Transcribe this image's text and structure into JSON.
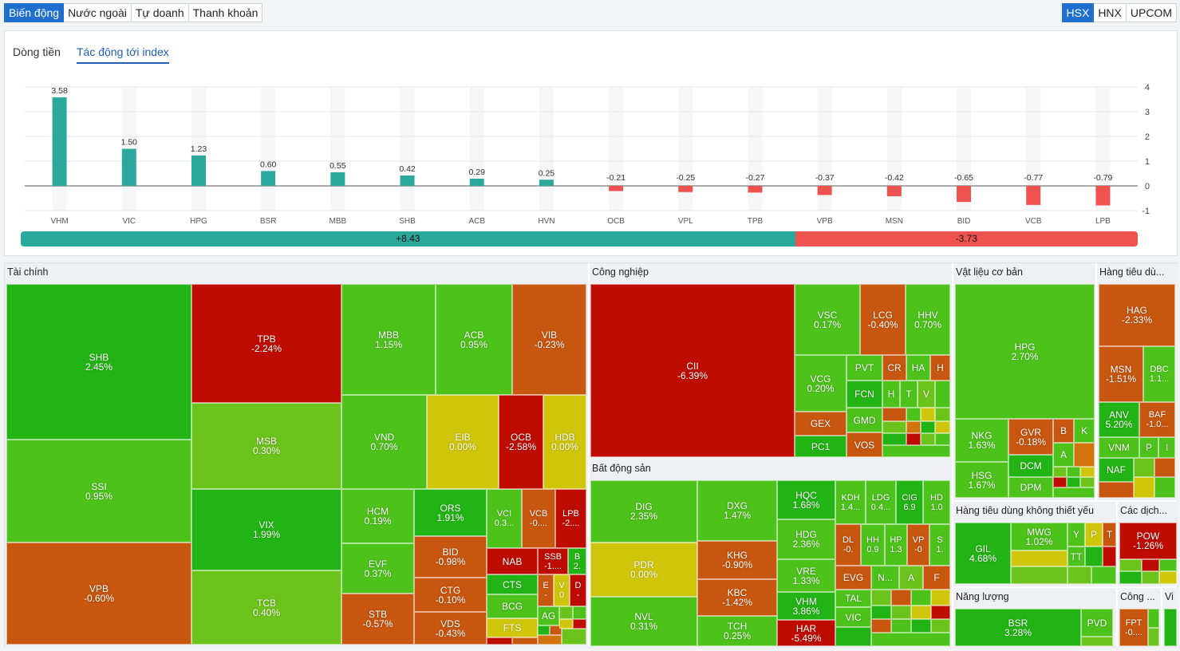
{
  "top_tabs": [
    {
      "label": "Biến động",
      "active": true
    },
    {
      "label": "Nước ngoài",
      "active": false
    },
    {
      "label": "Tự doanh",
      "active": false
    },
    {
      "label": "Thanh khoản",
      "active": false
    }
  ],
  "exchange_tabs": [
    {
      "label": "HSX",
      "active": true
    },
    {
      "label": "HNX",
      "active": false
    },
    {
      "label": "UPCOM",
      "active": false
    }
  ],
  "chart_tabs": {
    "flow": "Dòng tiền",
    "impact": "Tác động tới index"
  },
  "summary": {
    "positive": "+8.43",
    "negative": "-3.73",
    "positive_value": 8.43,
    "negative_value": 3.73
  },
  "colors": {
    "positive_bar": "#2aa89c",
    "negative_bar": "#ef5350",
    "up_strong": "#22b414",
    "up": "#4cc21a",
    "up_light": "#6cc31b",
    "flat": "#cfc60b",
    "down_light": "#d0740b",
    "down": "#c7560f",
    "down_strong": "#be0c02"
  },
  "chart_data": {
    "type": "bar",
    "categories": [
      "VHM",
      "VIC",
      "HPG",
      "BSR",
      "MBB",
      "SHB",
      "ACB",
      "HVN",
      "OCB",
      "VPL",
      "TPB",
      "VPB",
      "MSN",
      "BID",
      "VCB",
      "LPB"
    ],
    "values": [
      3.58,
      1.5,
      1.23,
      0.6,
      0.55,
      0.42,
      0.29,
      0.25,
      -0.21,
      -0.25,
      -0.27,
      -0.37,
      -0.42,
      -0.65,
      -0.77,
      -0.79
    ],
    "value_labels": [
      "3.58",
      "1.50",
      "1.23",
      "0.60",
      "0.55",
      "0.42",
      "0.29",
      "0.25",
      "-0.21",
      "-0.25",
      "-0.27",
      "-0.37",
      "-0.42",
      "-0.65",
      "-0.77",
      "-0.79"
    ],
    "ylim": [
      -1,
      4
    ],
    "yticks": [
      "4",
      "3",
      "2",
      "1",
      "0",
      "-1"
    ],
    "ytick_values": [
      4,
      3,
      2,
      1,
      0,
      -1
    ],
    "grid": true
  },
  "sectors": {
    "tai_chinh": "Tài chính",
    "cong_nghiep": "Công nghiệp",
    "bat_dong_san": "Bất động sản",
    "vat_lieu": "Vật liệu cơ bản",
    "hang_tieu_dung": "Hàng tiêu dù...",
    "hang_khong_thiet_yeu": "Hàng tiêu dùng không thiết yếu",
    "cac_dich": "Các dịch...",
    "nang_luong": "Năng lượng",
    "cong": "Công ...",
    "vi": "Vi"
  },
  "tiles": {
    "SHB": {
      "sym": "SHB",
      "chg": "2.45%"
    },
    "SSI": {
      "sym": "SSI",
      "chg": "0.95%"
    },
    "VPB": {
      "sym": "VPB",
      "chg": "-0.60%"
    },
    "TPB": {
      "sym": "TPB",
      "chg": "-2.24%"
    },
    "MSB": {
      "sym": "MSB",
      "chg": "0.30%"
    },
    "VIX": {
      "sym": "VIX",
      "chg": "1.99%"
    },
    "TCB": {
      "sym": "TCB",
      "chg": "0.40%"
    },
    "MBB": {
      "sym": "MBB",
      "chg": "1.15%"
    },
    "ACB": {
      "sym": "ACB",
      "chg": "0.95%"
    },
    "VIB": {
      "sym": "VIB",
      "chg": "-0.23%"
    },
    "VND": {
      "sym": "VND",
      "chg": "0.70%"
    },
    "EIB": {
      "sym": "EIB",
      "chg": "0.00%"
    },
    "OCB": {
      "sym": "OCB",
      "chg": "-2.58%"
    },
    "HDB": {
      "sym": "HDB",
      "chg": "0.00%"
    },
    "HCM": {
      "sym": "HCM",
      "chg": "0.19%"
    },
    "ORS": {
      "sym": "ORS",
      "chg": "1.91%"
    },
    "VCI": {
      "sym": "VCI",
      "chg": "0.3..."
    },
    "VCB": {
      "sym": "VCB",
      "chg": "-0...."
    },
    "LPB": {
      "sym": "LPB",
      "chg": "-2...."
    },
    "EVF": {
      "sym": "EVF",
      "chg": "0.37%"
    },
    "BID": {
      "sym": "BID",
      "chg": "-0.98%"
    },
    "NAB": {
      "sym": "NAB",
      "chg": ""
    },
    "SSB": {
      "sym": "SSB",
      "chg": "-1...."
    },
    "B2": {
      "sym": "B",
      "chg": "2."
    },
    "CTG": {
      "sym": "CTG",
      "chg": "-0.10%"
    },
    "CTS": {
      "sym": "CTS",
      "chg": ""
    },
    "STB": {
      "sym": "STB",
      "chg": "-0.57%"
    },
    "BCG": {
      "sym": "BCG",
      "chg": ""
    },
    "E": {
      "sym": "E",
      "chg": "-"
    },
    "V0": {
      "sym": "V",
      "chg": "0"
    },
    "D": {
      "sym": "D",
      "chg": "-"
    },
    "VDS": {
      "sym": "VDS",
      "chg": "-0.43%"
    },
    "FTS": {
      "sym": "FTS",
      "chg": ""
    },
    "AG": {
      "sym": "AG",
      "chg": ""
    },
    "CII": {
      "sym": "CII",
      "chg": "-6.39%"
    },
    "VSC": {
      "sym": "VSC",
      "chg": "0.17%"
    },
    "LCG": {
      "sym": "LCG",
      "chg": "-0.40%"
    },
    "HHV": {
      "sym": "HHV",
      "chg": "0.70%"
    },
    "VCG": {
      "sym": "VCG",
      "chg": "0.20%"
    },
    "PVT": {
      "sym": "PVT",
      "chg": ""
    },
    "CR": {
      "sym": "CR",
      "chg": ""
    },
    "HA": {
      "sym": "HA",
      "chg": ""
    },
    "H1": {
      "sym": "H",
      "chg": ""
    },
    "FCN": {
      "sym": "FCN",
      "chg": ""
    },
    "H2": {
      "sym": "H",
      "chg": ""
    },
    "T": {
      "sym": "T",
      "chg": ""
    },
    "V": {
      "sym": "V",
      "chg": ""
    },
    "GEX": {
      "sym": "GEX",
      "chg": ""
    },
    "GMD": {
      "sym": "GMD",
      "chg": ""
    },
    "PC1": {
      "sym": "PC1",
      "chg": ""
    },
    "VOS": {
      "sym": "VOS",
      "chg": ""
    },
    "DIG": {
      "sym": "DIG",
      "chg": "2.35%"
    },
    "DXG": {
      "sym": "DXG",
      "chg": "1.47%"
    },
    "HQC": {
      "sym": "HQC",
      "chg": "1.68%"
    },
    "KDH": {
      "sym": "KDH",
      "chg": "1.4..."
    },
    "LDG": {
      "sym": "LDG",
      "chg": "0.4..."
    },
    "CIG": {
      "sym": "CIG",
      "chg": "6.9"
    },
    "HD": {
      "sym": "HD",
      "chg": "1.0"
    },
    "HDG": {
      "sym": "HDG",
      "chg": "2.36%"
    },
    "PDR": {
      "sym": "PDR",
      "chg": "0.00%"
    },
    "KHG": {
      "sym": "KHG",
      "chg": "-0.90%"
    },
    "DL": {
      "sym": "DL",
      "chg": "-0."
    },
    "HH": {
      "sym": "HH",
      "chg": "0.9"
    },
    "HP": {
      "sym": "HP",
      "chg": "1.3"
    },
    "VP": {
      "sym": "VP",
      "chg": "-0"
    },
    "S": {
      "sym": "S",
      "chg": "1."
    },
    "VRE": {
      "sym": "VRE",
      "chg": "1.33%"
    },
    "EVG": {
      "sym": "EVG",
      "chg": ""
    },
    "N": {
      "sym": "N...",
      "chg": ""
    },
    "A": {
      "sym": "A",
      "chg": ""
    },
    "F": {
      "sym": "F",
      "chg": ""
    },
    "NVL": {
      "sym": "NVL",
      "chg": "0.31%"
    },
    "KBC": {
      "sym": "KBC",
      "chg": "-1.42%"
    },
    "VHM": {
      "sym": "VHM",
      "chg": "3.86%"
    },
    "TAL": {
      "sym": "TAL",
      "chg": ""
    },
    "VIC": {
      "sym": "VIC",
      "chg": ""
    },
    "TCH": {
      "sym": "TCH",
      "chg": "0.25%"
    },
    "HAR": {
      "sym": "HAR",
      "chg": "-5.49%"
    },
    "HPG": {
      "sym": "HPG",
      "chg": "2.70%"
    },
    "NKG": {
      "sym": "NKG",
      "chg": "1.63%"
    },
    "GVR": {
      "sym": "GVR",
      "chg": "-0.18%"
    },
    "BV": {
      "sym": "B",
      "chg": ""
    },
    "K": {
      "sym": "K",
      "chg": ""
    },
    "AV": {
      "sym": "A",
      "chg": ""
    },
    "DCM": {
      "sym": "DCM",
      "chg": ""
    },
    "HSG": {
      "sym": "HSG",
      "chg": "1.67%"
    },
    "DPM": {
      "sym": "DPM",
      "chg": ""
    },
    "HAG": {
      "sym": "HAG",
      "chg": "-2.33%"
    },
    "MSN": {
      "sym": "MSN",
      "chg": "-1.51%"
    },
    "DBC": {
      "sym": "DBC",
      "chg": "1.1..."
    },
    "ANV": {
      "sym": "ANV",
      "chg": "5.20%"
    },
    "BAF": {
      "sym": "BAF",
      "chg": "-1.0..."
    },
    "VNM": {
      "sym": "VNM",
      "chg": ""
    },
    "P": {
      "sym": "P",
      "chg": ""
    },
    "I": {
      "sym": "I",
      "chg": ""
    },
    "NAF": {
      "sym": "NAF",
      "chg": ""
    },
    "GIL": {
      "sym": "GIL",
      "chg": "4.68%"
    },
    "MWG": {
      "sym": "MWG",
      "chg": "1.02%"
    },
    "Y": {
      "sym": "Y",
      "chg": ""
    },
    "P2": {
      "sym": "P",
      "chg": ""
    },
    "T2": {
      "sym": "T",
      "chg": ""
    },
    "TT": {
      "sym": "TT",
      "chg": ""
    },
    "POW": {
      "sym": "POW",
      "chg": "-1.26%"
    },
    "BSR": {
      "sym": "BSR",
      "chg": "3.28%"
    },
    "PVD": {
      "sym": "PVD",
      "chg": ""
    },
    "FPT": {
      "sym": "FPT",
      "chg": "-0...."
    }
  }
}
